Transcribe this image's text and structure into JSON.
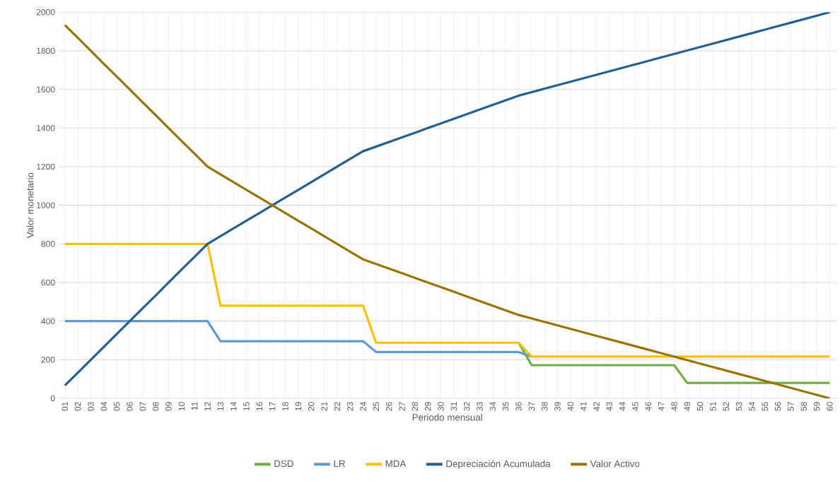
{
  "chart_data": {
    "type": "line",
    "xlabel": "Periodo mensual",
    "ylabel": "Valor monetario",
    "categories": [
      "01",
      "02",
      "03",
      "04",
      "05",
      "06",
      "07",
      "08",
      "09",
      "10",
      "11",
      "12",
      "13",
      "14",
      "15",
      "16",
      "17",
      "18",
      "19",
      "20",
      "21",
      "22",
      "23",
      "24",
      "25",
      "26",
      "27",
      "28",
      "29",
      "30",
      "31",
      "32",
      "33",
      "34",
      "35",
      "36",
      "37",
      "38",
      "39",
      "40",
      "41",
      "42",
      "43",
      "44",
      "45",
      "46",
      "47",
      "48",
      "49",
      "50",
      "51",
      "52",
      "53",
      "54",
      "55",
      "56",
      "57",
      "58",
      "59",
      "60"
    ],
    "series": [
      {
        "name": "DSD",
        "color": "#70ad47",
        "values": [
          null,
          null,
          null,
          null,
          null,
          null,
          null,
          null,
          null,
          null,
          null,
          null,
          null,
          null,
          null,
          null,
          null,
          null,
          null,
          null,
          null,
          null,
          null,
          null,
          null,
          null,
          null,
          null,
          null,
          null,
          null,
          null,
          null,
          null,
          null,
          288,
          172,
          172,
          172,
          172,
          172,
          172,
          172,
          172,
          172,
          172,
          172,
          172,
          80,
          80,
          80,
          80,
          80,
          80,
          80,
          80,
          80,
          80,
          80,
          80
        ]
      },
      {
        "name": "LR",
        "color": "#5b9bd5",
        "values": [
          400,
          400,
          400,
          400,
          400,
          400,
          400,
          400,
          400,
          400,
          400,
          400,
          296,
          296,
          296,
          296,
          296,
          296,
          296,
          296,
          296,
          296,
          296,
          296,
          240,
          240,
          240,
          240,
          240,
          240,
          240,
          240,
          240,
          240,
          240,
          240,
          216,
          null,
          null,
          null,
          null,
          null,
          null,
          null,
          null,
          null,
          null,
          null,
          null,
          null,
          null,
          null,
          null,
          null,
          null,
          null,
          null,
          null,
          null,
          null
        ]
      },
      {
        "name": "MDA",
        "color": "#ffc000",
        "values": [
          800,
          800,
          800,
          800,
          800,
          800,
          800,
          800,
          800,
          800,
          800,
          800,
          480,
          480,
          480,
          480,
          480,
          480,
          480,
          480,
          480,
          480,
          480,
          480,
          288,
          288,
          288,
          288,
          288,
          288,
          288,
          288,
          288,
          288,
          288,
          288,
          216,
          216,
          216,
          216,
          216,
          216,
          216,
          216,
          216,
          216,
          216,
          216,
          216,
          216,
          216,
          216,
          216,
          216,
          216,
          216,
          216,
          216,
          216,
          216
        ]
      },
      {
        "name": "Depreciación Acumulada",
        "color": "#255e91",
        "values": [
          67,
          133,
          200,
          267,
          333,
          400,
          467,
          533,
          600,
          667,
          733,
          800,
          840,
          880,
          920,
          960,
          1000,
          1040,
          1080,
          1120,
          1160,
          1200,
          1240,
          1280,
          1304,
          1328,
          1352,
          1376,
          1400,
          1424,
          1448,
          1472,
          1496,
          1520,
          1544,
          1568,
          1586,
          1604,
          1622,
          1640,
          1658,
          1676,
          1694,
          1712,
          1730,
          1748,
          1766,
          1784,
          1802,
          1820,
          1838,
          1856,
          1874,
          1892,
          1910,
          1928,
          1946,
          1964,
          1982,
          2000
        ]
      },
      {
        "name": "Valor Activo",
        "color": "#997300",
        "values": [
          1933,
          1867,
          1800,
          1733,
          1667,
          1600,
          1533,
          1467,
          1400,
          1333,
          1267,
          1200,
          1160,
          1120,
          1080,
          1040,
          1000,
          960,
          920,
          880,
          840,
          800,
          760,
          720,
          696,
          672,
          648,
          624,
          600,
          576,
          552,
          528,
          504,
          480,
          456,
          432,
          414,
          396,
          378,
          360,
          342,
          324,
          306,
          288,
          270,
          252,
          234,
          216,
          198,
          180,
          162,
          144,
          126,
          108,
          90,
          72,
          54,
          36,
          18,
          0
        ]
      }
    ],
    "ylim": [
      0,
      2000
    ],
    "yticks": [
      0,
      200,
      400,
      600,
      800,
      1000,
      1200,
      1400,
      1600,
      1800,
      2000
    ],
    "grid": true,
    "legend": "bottom",
    "marker": "none",
    "line_style": "solid"
  }
}
